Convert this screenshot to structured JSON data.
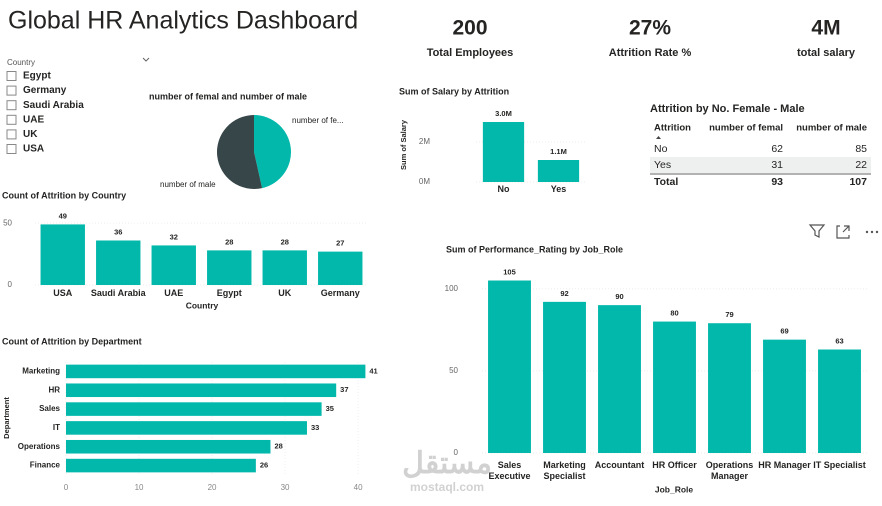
{
  "header": {
    "title": "Global HR Analytics Dashboard"
  },
  "kpis": [
    {
      "value": "200",
      "label": "Total Employees"
    },
    {
      "value": "27%",
      "label": "Attrition Rate %"
    },
    {
      "value": "4M",
      "label": "total salary"
    }
  ],
  "slicer": {
    "title": "Country",
    "items": [
      "Egypt",
      "Germany",
      "Saudi Arabia",
      "UAE",
      "UK",
      "USA"
    ]
  },
  "table": {
    "title": "Attrition by No. Female - Male",
    "columns": [
      "Attrition",
      "number of femal",
      "number of male"
    ],
    "rows": [
      [
        "No",
        "62",
        "85"
      ],
      [
        "Yes",
        "31",
        "22"
      ]
    ],
    "total": [
      "Total",
      "93",
      "107"
    ]
  },
  "watermark": {
    "arabic": "مستقل",
    "latin": "mostaql.com"
  },
  "chart_data": [
    {
      "type": "pie",
      "title": "number of femal and number of male",
      "categories": [
        "number of fe...",
        "number of male"
      ],
      "values": [
        93,
        107
      ],
      "colors": [
        "#01B8AA",
        "#374649"
      ]
    },
    {
      "type": "bar",
      "title": "Sum of Salary by Attrition",
      "y_label": "Sum of Salary",
      "categories": [
        "No",
        "Yes"
      ],
      "values": [
        3000000,
        1100000
      ],
      "value_labels": [
        "3.0M",
        "1.1M"
      ],
      "color": "#01B8AA",
      "ylim": [
        0,
        3600000
      ],
      "yticks": [
        {
          "value": 0,
          "label": "0M"
        },
        {
          "value": 2000000,
          "label": "2M"
        }
      ]
    },
    {
      "type": "bar",
      "title": "Count of Attrition by Country",
      "x_label": "Country",
      "categories": [
        "USA",
        "Saudi Arabia",
        "UAE",
        "Egypt",
        "UK",
        "Germany"
      ],
      "values": [
        49,
        36,
        32,
        28,
        28,
        27
      ],
      "color": "#01B8AA",
      "ylim": [
        0,
        55
      ],
      "yticks": [
        0,
        50
      ]
    },
    {
      "type": "hbar",
      "title": "Count of Attrition by Department",
      "y_label": "Department",
      "categories": [
        "Marketing",
        "HR",
        "Sales",
        "IT",
        "Operations",
        "Finance"
      ],
      "values": [
        41,
        37,
        35,
        33,
        28,
        26
      ],
      "color": "#01B8AA",
      "xlim": [
        0,
        43
      ],
      "xticks": [
        0,
        10,
        20,
        30,
        40
      ]
    },
    {
      "type": "bar",
      "title": "Sum of Performance_Rating by Job_Role",
      "x_label": "Job_Role",
      "categories": [
        "Sales Executive",
        "Marketing Specialist",
        "Accountant",
        "HR Officer",
        "Operations Manager",
        "HR Manager",
        "IT Specialist"
      ],
      "values": [
        105,
        92,
        90,
        80,
        79,
        69,
        63
      ],
      "color": "#01B8AA",
      "ylim": [
        0,
        112
      ],
      "yticks": [
        0,
        50,
        100
      ]
    }
  ]
}
